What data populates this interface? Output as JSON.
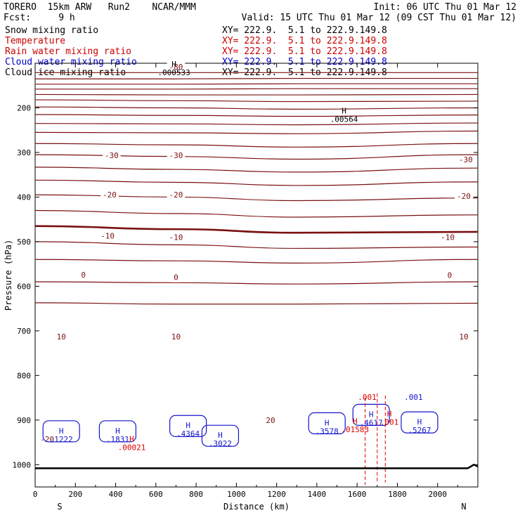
{
  "header": {
    "title_line": "TORERO  15km ARW   Run2    NCAR/MMM",
    "init": "Init: 06 UTC Thu 01 Mar 12",
    "fcst": "Fcst:     9 h",
    "valid": "Valid: 15 UTC Thu 01 Mar 12 (09 CST Thu 01 Mar 12)"
  },
  "legend": [
    {
      "label": "Snow mixing ratio",
      "xy": "XY= 222.9.  5.1 to 222.9.149.8",
      "color": "#000000"
    },
    {
      "label": "Temperature",
      "xy": "XY= 222.9.  5.1 to 222.9.149.8",
      "color": "#cc0000"
    },
    {
      "label": "Rain water mixing ratio",
      "xy": "XY= 222.9.  5.1 to 222.9.149.8",
      "color": "#cc0000"
    },
    {
      "label": "Cloud water mixing ratio",
      "xy": "XY= 222.9.  5.1 to 222.9.149.8",
      "color": "#0000cc"
    },
    {
      "label": "Cloud ice mixing ratio",
      "xy": "XY= 222.9.  5.1 to 222.9.149.8",
      "color": "#000000"
    }
  ],
  "colors": {
    "temperature": "#7a1010",
    "rain": "#dd0000",
    "cloud_water": "#1515cc",
    "ice": "#000000",
    "axis": "#000000"
  },
  "chart_data": {
    "type": "line",
    "xlabel": "Distance (km)",
    "ylabel": "Pressure (hPa)",
    "xlim": [
      0,
      2200
    ],
    "ylim": [
      1050,
      100
    ],
    "xticks": [
      0,
      200,
      400,
      600,
      800,
      1000,
      1200,
      1400,
      1600,
      1800,
      2000
    ],
    "yticks": [
      200,
      300,
      400,
      500,
      600,
      700,
      800,
      900,
      1000
    ],
    "x_end_labels": {
      "left": "S",
      "right": "N"
    },
    "temperature_isotherms": [
      {
        "level": -80,
        "p": [
          121,
          121,
          121,
          121
        ]
      },
      {
        "level": -75,
        "p": [
          135,
          135,
          134,
          134
        ]
      },
      {
        "level": -70,
        "p": [
          147,
          147,
          146,
          146
        ]
      },
      {
        "level": -65,
        "p": [
          158,
          158,
          157,
          157
        ]
      },
      {
        "level": -60,
        "p": [
          170,
          171,
          171,
          170
        ]
      },
      {
        "level": -55,
        "p": [
          182,
          184,
          186,
          185
        ]
      },
      {
        "level": -50,
        "p": [
          198,
          200,
          203,
          200
        ]
      },
      {
        "level": -45,
        "p": [
          215,
          217,
          219,
          216
        ]
      },
      {
        "level": -40,
        "p": [
          235,
          236,
          238,
          234
        ]
      },
      {
        "level": -35,
        "p": [
          255,
          256,
          258,
          252
        ]
      },
      {
        "level": -30,
        "p": [
          280,
          283,
          288,
          280
        ]
      },
      {
        "level": -25,
        "p": [
          305,
          309,
          315,
          305
        ]
      },
      {
        "level": -20,
        "p": [
          333,
          338,
          344,
          335
        ]
      },
      {
        "level": -15,
        "p": [
          362,
          367,
          374,
          366
        ]
      },
      {
        "level": -10,
        "p": [
          395,
          400,
          408,
          402
        ]
      },
      {
        "level": -5,
        "p": [
          430,
          437,
          445,
          440
        ]
      },
      {
        "level": 0,
        "p": [
          465,
          472,
          480,
          478
        ]
      },
      {
        "level": 5,
        "p": [
          500,
          507,
          515,
          512
        ]
      },
      {
        "level": 10,
        "p": [
          540,
          543,
          548,
          540
        ]
      },
      {
        "level": 15,
        "p": [
          590,
          592,
          595,
          590
        ]
      },
      {
        "level": 20,
        "p": [
          637,
          640,
          640,
          638
        ]
      }
    ],
    "temperature_labels": [
      {
        "text": "-80",
        "x": 700,
        "p": 108
      },
      {
        "text": "-30",
        "x": 380,
        "p": 306
      },
      {
        "text": "-30",
        "x": 700,
        "p": 306
      },
      {
        "text": "-30",
        "x": 2140,
        "p": 316
      },
      {
        "text": "-20",
        "x": 370,
        "p": 395
      },
      {
        "text": "-20",
        "x": 700,
        "p": 395
      },
      {
        "text": "-20",
        "x": 2130,
        "p": 398
      },
      {
        "text": "-10",
        "x": 360,
        "p": 487
      },
      {
        "text": "-10",
        "x": 700,
        "p": 490
      },
      {
        "text": "-10",
        "x": 2050,
        "p": 490
      },
      {
        "text": "0",
        "x": 240,
        "p": 574
      },
      {
        "text": "0",
        "x": 700,
        "p": 580
      },
      {
        "text": "0",
        "x": 2060,
        "p": 575
      },
      {
        "text": "10",
        "x": 130,
        "p": 713
      },
      {
        "text": "10",
        "x": 700,
        "p": 713
      },
      {
        "text": "10",
        "x": 2130,
        "p": 713
      },
      {
        "text": "20",
        "x": 1170,
        "p": 900
      },
      {
        "text": "-20",
        "x": 60,
        "p": 943
      }
    ],
    "maxima": [
      {
        "mark": "H",
        "value": ".000533",
        "x": 690,
        "p": 108,
        "series": "ice"
      },
      {
        "mark": "H",
        "value": ".00564",
        "x": 1535,
        "p": 213,
        "series": "ice"
      },
      {
        "mark": "H",
        "value": ".1222",
        "x": 130,
        "p": 930,
        "series": "cloud_water"
      },
      {
        "mark": "H",
        "value": ".1831",
        "x": 410,
        "p": 930,
        "series": "cloud_water"
      },
      {
        "mark": "H",
        "value": ".00021",
        "x": 480,
        "p": 948,
        "series": "rain"
      },
      {
        "mark": "H",
        "value": ".4364",
        "x": 760,
        "p": 918,
        "series": "cloud_water"
      },
      {
        "mark": "H",
        "value": ".3022",
        "x": 920,
        "p": 940,
        "series": "cloud_water"
      },
      {
        "mark": "H",
        "value": ".3578",
        "x": 1450,
        "p": 912,
        "series": "cloud_water"
      },
      {
        "mark": "H",
        "value": ".4617",
        "x": 1670,
        "p": 893,
        "series": "cloud_water"
      },
      {
        "mark": "H",
        "value": ".01583",
        "x": 1590,
        "p": 908,
        "series": "rain"
      },
      {
        "mark": "H",
        "value": ".001",
        "x": 1760,
        "p": 892,
        "series": "rain"
      },
      {
        "mark": "H",
        "value": ".5267",
        "x": 1910,
        "p": 910,
        "series": "cloud_water"
      },
      {
        "mark": ".001",
        "value": ".001",
        "x": 1650,
        "p": 855,
        "series": "rain"
      },
      {
        "mark": ".001",
        "value": ".001",
        "x": 1880,
        "p": 855,
        "series": "cloud_water"
      }
    ]
  }
}
